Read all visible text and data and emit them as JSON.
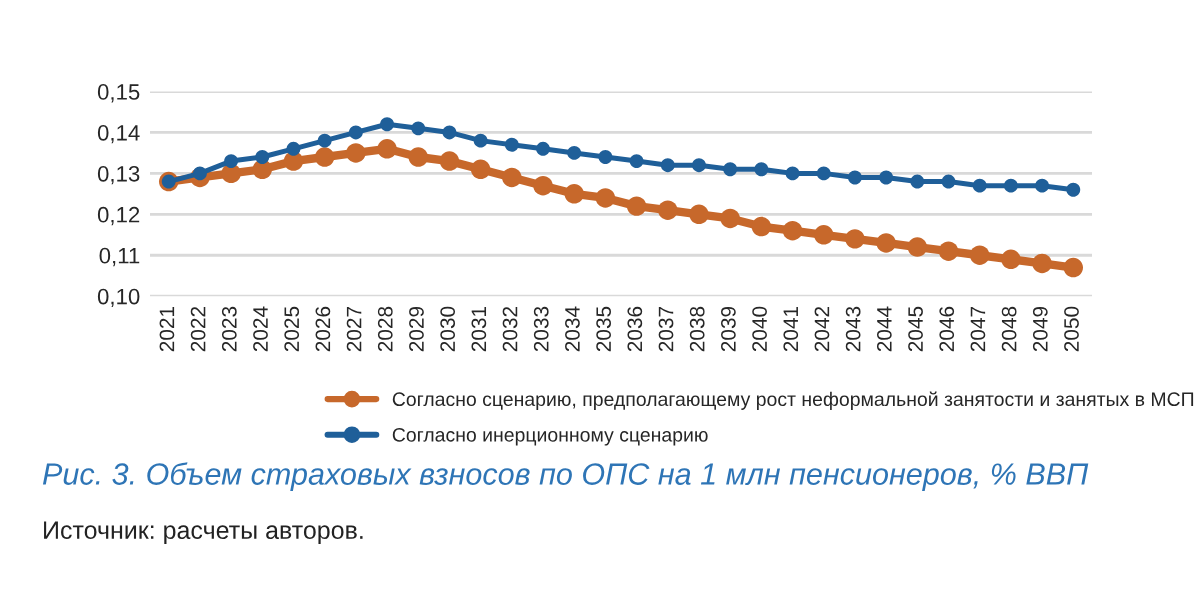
{
  "chart_data": {
    "type": "line",
    "title": "Рис. 3. Объем страховых взносов по ОПС на 1 млн пенсионеров, % ВВП",
    "annotations": [
      "Источник: расчеты авторов."
    ],
    "categories": [
      "2021",
      "2022",
      "2023",
      "2024",
      "2025",
      "2026",
      "2027",
      "2028",
      "2029",
      "2030",
      "2031",
      "2032",
      "2033",
      "2034",
      "2035",
      "2036",
      "2037",
      "2038",
      "2039",
      "2040",
      "2041",
      "2042",
      "2043",
      "2044",
      "2045",
      "2046",
      "2047",
      "2048",
      "2049",
      "2050"
    ],
    "series": [
      {
        "name": "Согласно сценарию, предполагающему рост неформальной занятости и занятых в МСП",
        "color": "#c7682b",
        "values": [
          0.128,
          0.129,
          0.13,
          0.131,
          0.133,
          0.134,
          0.135,
          0.136,
          0.134,
          0.133,
          0.131,
          0.129,
          0.127,
          0.125,
          0.124,
          0.122,
          0.121,
          0.12,
          0.119,
          0.117,
          0.116,
          0.115,
          0.114,
          0.113,
          0.112,
          0.111,
          0.11,
          0.109,
          0.108,
          0.107
        ]
      },
      {
        "name": "Согласно инерционному сценарию",
        "color": "#1f5f99",
        "values": [
          0.128,
          0.13,
          0.133,
          0.134,
          0.136,
          0.138,
          0.14,
          0.142,
          0.141,
          0.14,
          0.138,
          0.137,
          0.136,
          0.135,
          0.134,
          0.133,
          0.132,
          0.132,
          0.131,
          0.131,
          0.13,
          0.13,
          0.129,
          0.129,
          0.128,
          0.128,
          0.127,
          0.127,
          0.127,
          0.126
        ]
      }
    ],
    "ylim": [
      0.1,
      0.15
    ],
    "yticks": [
      {
        "value": 0.1,
        "label": "0,10"
      },
      {
        "value": 0.11,
        "label": "0,11"
      },
      {
        "value": 0.12,
        "label": "0,12"
      },
      {
        "value": 0.13,
        "label": "0,13"
      },
      {
        "value": 0.14,
        "label": "0,14"
      },
      {
        "value": 0.15,
        "label": "0,15"
      }
    ],
    "grid": "y",
    "legend": "bottom",
    "marker": "circle",
    "line_style": "solid"
  }
}
